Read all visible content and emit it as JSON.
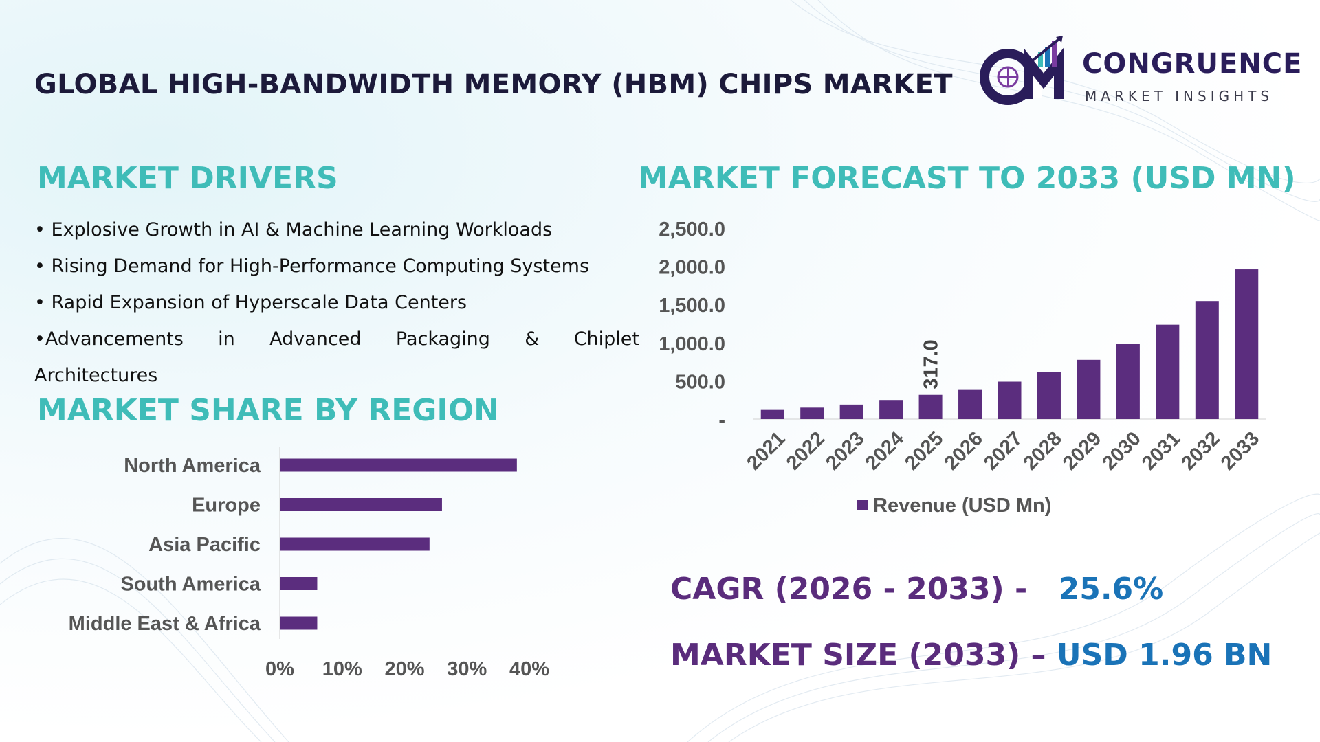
{
  "header": {
    "title": "GLOBAL HIGH-BANDWIDTH MEMORY (HBM) CHIPS MARKET",
    "logo_word": "CONGRUENCE",
    "logo_sub": "MARKET INSIGHTS"
  },
  "drivers": {
    "heading": "MARKET DRIVERS",
    "items": [
      "• Explosive Growth in AI & Machine Learning Workloads",
      "• Rising Demand for High-Performance Computing Systems",
      "• Rapid Expansion of Hyperscale Data Centers",
      "•Advancements in Advanced Packaging & Chiplet",
      "Architectures"
    ]
  },
  "region": {
    "heading": "MARKET SHARE BY REGION"
  },
  "forecast": {
    "heading": "MARKET FORECAST TO 2033 (USD MN)"
  },
  "stats": {
    "cagr_label": "CAGR (2026 - 2033) -",
    "cagr_value": "25.6%",
    "size_label": "MARKET SIZE (2033) –",
    "size_value": "USD 1.96 BN"
  },
  "colors": {
    "bar": "#5b2d7e",
    "heading": "#3fbcb8",
    "stat_label": "#5a2c7c",
    "stat_value": "#1a73b7"
  },
  "chart_data": [
    {
      "type": "bar",
      "orientation": "horizontal",
      "categories": [
        "North America",
        "Europe",
        "Asia Pacific",
        "South America",
        "Middle East & Africa"
      ],
      "values": [
        38,
        26,
        24,
        6,
        6
      ],
      "xticks": [
        "0%",
        "10%",
        "20%",
        "30%",
        "40%"
      ],
      "xlim": [
        0,
        40
      ],
      "grid": false
    },
    {
      "type": "bar",
      "categories": [
        "2021",
        "2022",
        "2023",
        "2024",
        "2025",
        "2026",
        "2027",
        "2028",
        "2029",
        "2030",
        "2031",
        "2032",
        "2033"
      ],
      "series": [
        {
          "name": "Revenue (USD Mn)",
          "values": [
            120,
            150,
            190,
            250,
            317,
            390,
            490,
            615,
            775,
            985,
            1235,
            1545,
            1960
          ]
        }
      ],
      "data_labels": [
        {
          "index": 4,
          "text": "317.0"
        }
      ],
      "yticks": [
        "-",
        "500.0",
        "1,000.0",
        "1,500.0",
        "2,000.0",
        "2,500.0"
      ],
      "ylim": [
        0,
        2500
      ],
      "legend": "bottom",
      "grid": false
    }
  ]
}
